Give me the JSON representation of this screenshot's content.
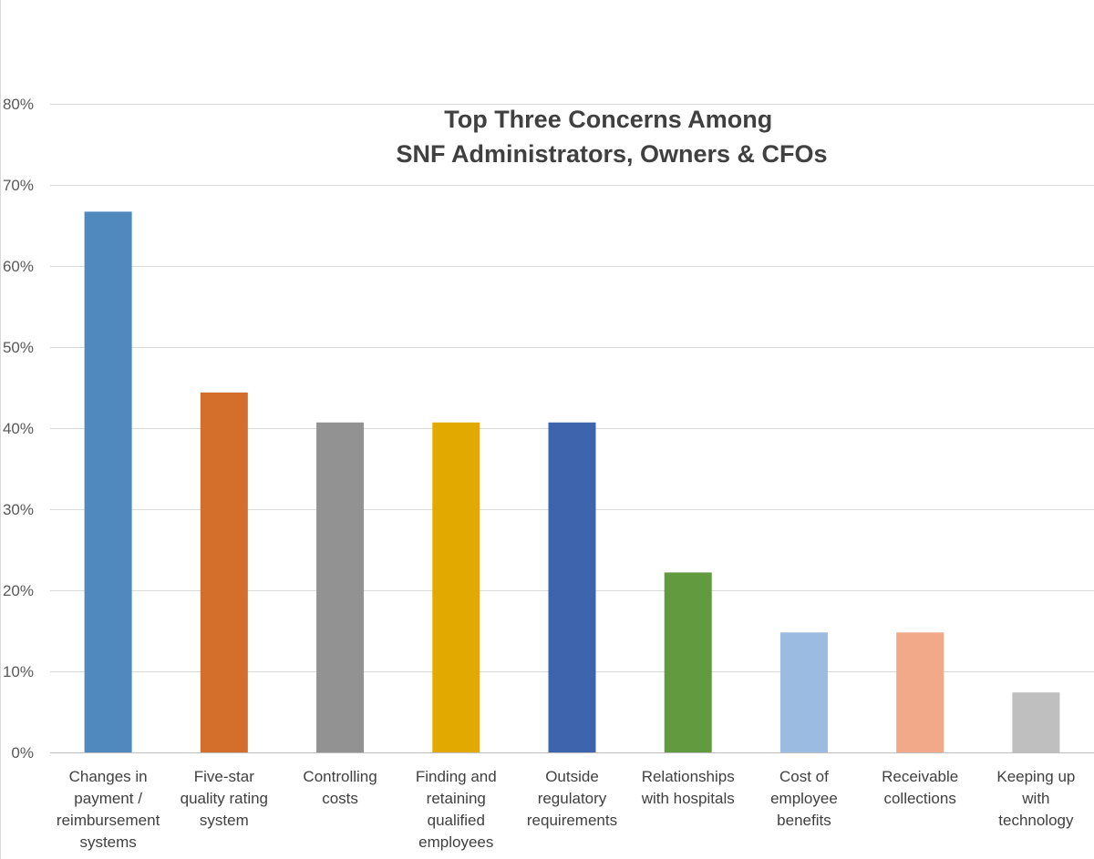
{
  "chart_data": {
    "type": "bar",
    "title": [
      "Top Three Concerns Among",
      "SNF Administrators, Owners & CFOs"
    ],
    "xlabel": "",
    "ylabel": "",
    "ylim": [
      0,
      80
    ],
    "yticks": [
      "0%",
      "10%",
      "20%",
      "30%",
      "40%",
      "50%",
      "60%",
      "70%",
      "80%"
    ],
    "grid": true,
    "categories": [
      [
        "Changes in",
        "payment /",
        "reimbursement",
        "systems"
      ],
      [
        "Five-star",
        "quality rating",
        "system"
      ],
      [
        "Controlling",
        "costs"
      ],
      [
        "Finding and",
        "retaining",
        "qualified",
        "employees"
      ],
      [
        "Outside",
        "regulatory",
        "requirements"
      ],
      [
        "Relationships",
        "with hospitals"
      ],
      [
        "Cost of",
        "employee",
        "benefits"
      ],
      [
        "Receivable",
        "collections"
      ],
      [
        "Keeping up",
        "with",
        "technology"
      ]
    ],
    "values": [
      66.7,
      44.4,
      40.7,
      40.7,
      40.7,
      22.2,
      14.8,
      14.8,
      7.4
    ],
    "colors": [
      "#4f89bd",
      "#d46e2b",
      "#929292",
      "#e2aa00",
      "#3d64ad",
      "#629a3f",
      "#9bbbe0",
      "#f1a98a",
      "#bfbfbf"
    ]
  }
}
